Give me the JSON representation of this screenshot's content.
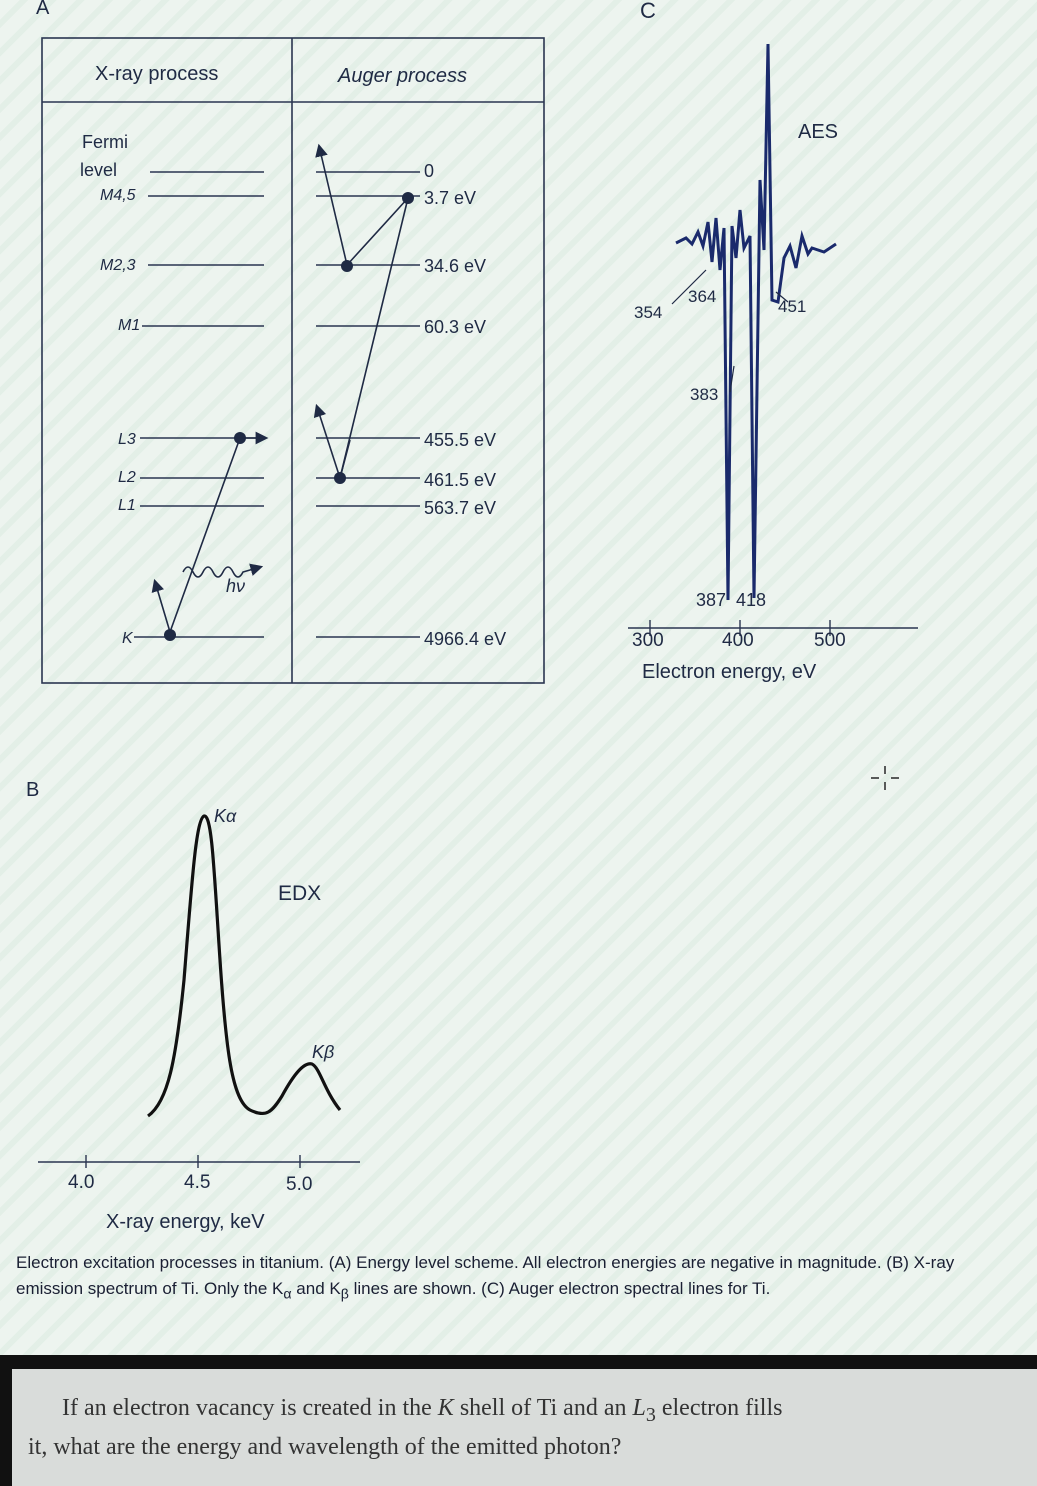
{
  "panels": {
    "a": "A",
    "b": "B",
    "c": "C"
  },
  "panel_a": {
    "xray_header": "X-ray process",
    "auger_header": "Auger process",
    "levels": {
      "fermi_line1": "Fermi",
      "fermi_line2": "level",
      "m45": "M4,5",
      "m23": "M2,3",
      "m1": "M1",
      "l3": "L3",
      "l2": "L2",
      "l1": "L1",
      "k": "K"
    },
    "energies": {
      "e0": "0",
      "e1": "3.7 eV",
      "e2": "34.6 eV",
      "e3": "60.3 eV",
      "e4": "455.5 eV",
      "e5": "461.5 eV",
      "e6": "563.7 eV",
      "e7": "4966.4 eV"
    },
    "photon_label": "hν"
  },
  "panel_b": {
    "chart_data": {
      "type": "line",
      "title": "",
      "xlabel": "X-ray energy, keV",
      "ylabel": "",
      "x_ticks": [
        "4.0",
        "4.5",
        "5.0"
      ],
      "xlim": [
        4.0,
        5.0
      ],
      "series": [
        {
          "name": "EDX",
          "peaks": [
            {
              "label": "Kα",
              "x": 4.51,
              "rel_intensity": 1.0
            },
            {
              "label": "Kβ",
              "x": 4.93,
              "rel_intensity": 0.2
            }
          ]
        }
      ],
      "grid": false
    },
    "series_label": "EDX",
    "ka_label": "Kα",
    "kb_label": "Kβ"
  },
  "panel_c": {
    "chart_data": {
      "type": "line",
      "title": "",
      "xlabel": "Electron energy, eV",
      "ylabel": "",
      "x_ticks": [
        "300",
        "400",
        "500"
      ],
      "xlim": [
        300,
        500
      ],
      "series": [
        {
          "name": "AES",
          "peak_labels_eV": [
            354,
            364,
            383,
            387,
            418,
            451
          ]
        }
      ],
      "grid": false
    },
    "series_label": "AES",
    "peaks": {
      "p354": "354",
      "p364": "364",
      "p383": "383",
      "p451": "451",
      "p387_418": "387  418"
    }
  },
  "caption": {
    "part1": "Electron excitation processes in titanium. (A) Energy level scheme. All electron energies are negative in magnitude. (B) X-ray emission spectrum of Ti. Only the K",
    "sub_a": "α",
    "part2": " and K",
    "sub_b": "β",
    "part3": " lines are shown. (C) Auger electron spectral lines for Ti."
  },
  "question": {
    "part1": "If an electron vacancy is created in the ",
    "k_italic": "K",
    "part2": " shell of Ti and an ",
    "l_italic": "L",
    "l_sub": "3",
    "part3": " electron fills",
    "line2": "it, what are the energy and wavelength of the emitted photon?"
  },
  "colors": {
    "ink": "#1f2a44",
    "spectrum": "#1a2a6c",
    "background": "#edf4ef"
  }
}
